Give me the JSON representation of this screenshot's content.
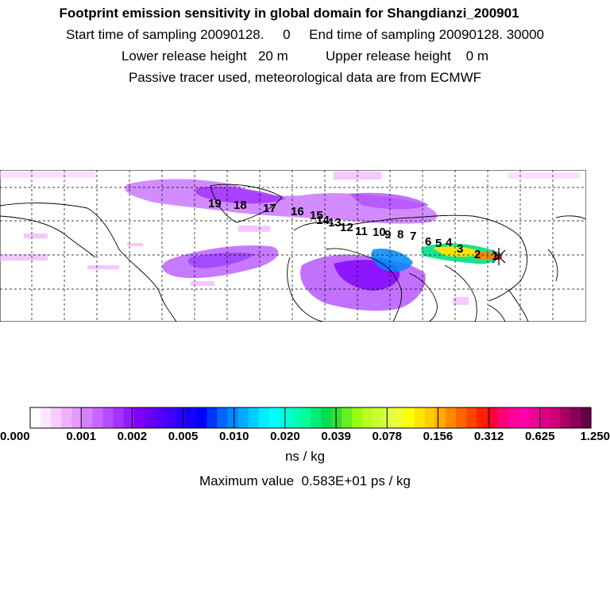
{
  "header": {
    "title": "Footprint emission sensitivity in global domain for Shangdianzi_200901",
    "line2": "Start time of sampling 20090128.     0     End time of sampling 20090128. 30000",
    "line3": "Lower release height   20 m          Upper release height    0 m",
    "line4": "Passive tracer used, meteorological data are from ECMWF"
  },
  "map": {
    "trajectory_labels": [
      "19",
      "18",
      "17",
      "16",
      "15",
      "14",
      "13",
      "12",
      "11",
      "10",
      "9",
      "8",
      "7",
      "6",
      "5",
      "4",
      "3",
      "2",
      "1"
    ],
    "release_site_marker": "star-cross-icon",
    "colors": {
      "low": "#f5ccff",
      "mid": "#b44cff",
      "high": "#7a00e6",
      "plume_green": "#00e08a",
      "plume_yellow": "#ffe600",
      "plume_red": "#ff2020"
    }
  },
  "colorbar": {
    "tick_labels": [
      "0.000",
      "0.001",
      "0.002",
      "0.005",
      "0.010",
      "0.020",
      "0.039",
      "0.078",
      "0.156",
      "0.312",
      "0.625",
      "1.250"
    ],
    "colors": [
      "#ffffff",
      "#fde6ff",
      "#f8ccff",
      "#f0b2ff",
      "#e699ff",
      "#d580ff",
      "#c466ff",
      "#b34dff",
      "#a333ff",
      "#921aff",
      "#8000ff",
      "#6b00f0",
      "#5500ff",
      "#3f00ff",
      "#2a00ff",
      "#1500ff",
      "#0000ff",
      "#0033ff",
      "#0066ff",
      "#0088ff",
      "#00aaff",
      "#00ccff",
      "#00eeff",
      "#00ffff",
      "#00ffdd",
      "#00ffbb",
      "#00ff99",
      "#00ee77",
      "#00dd55",
      "#33dd33",
      "#66ee22",
      "#99ff11",
      "#bbff22",
      "#ccff33",
      "#ddff44",
      "#eeff33",
      "#ffff00",
      "#ffe600",
      "#ffcc00",
      "#ffaa00",
      "#ff8800",
      "#ff6600",
      "#ff4400",
      "#ff2200",
      "#ff0033",
      "#ff0077",
      "#ff0099",
      "#ff00aa",
      "#ee0099",
      "#dd0088",
      "#cc0077",
      "#aa0066",
      "#880055",
      "#660044"
    ],
    "unit": "ns / kg",
    "max_value_text": "Maximum value  0.583E+01 ps / kg"
  }
}
